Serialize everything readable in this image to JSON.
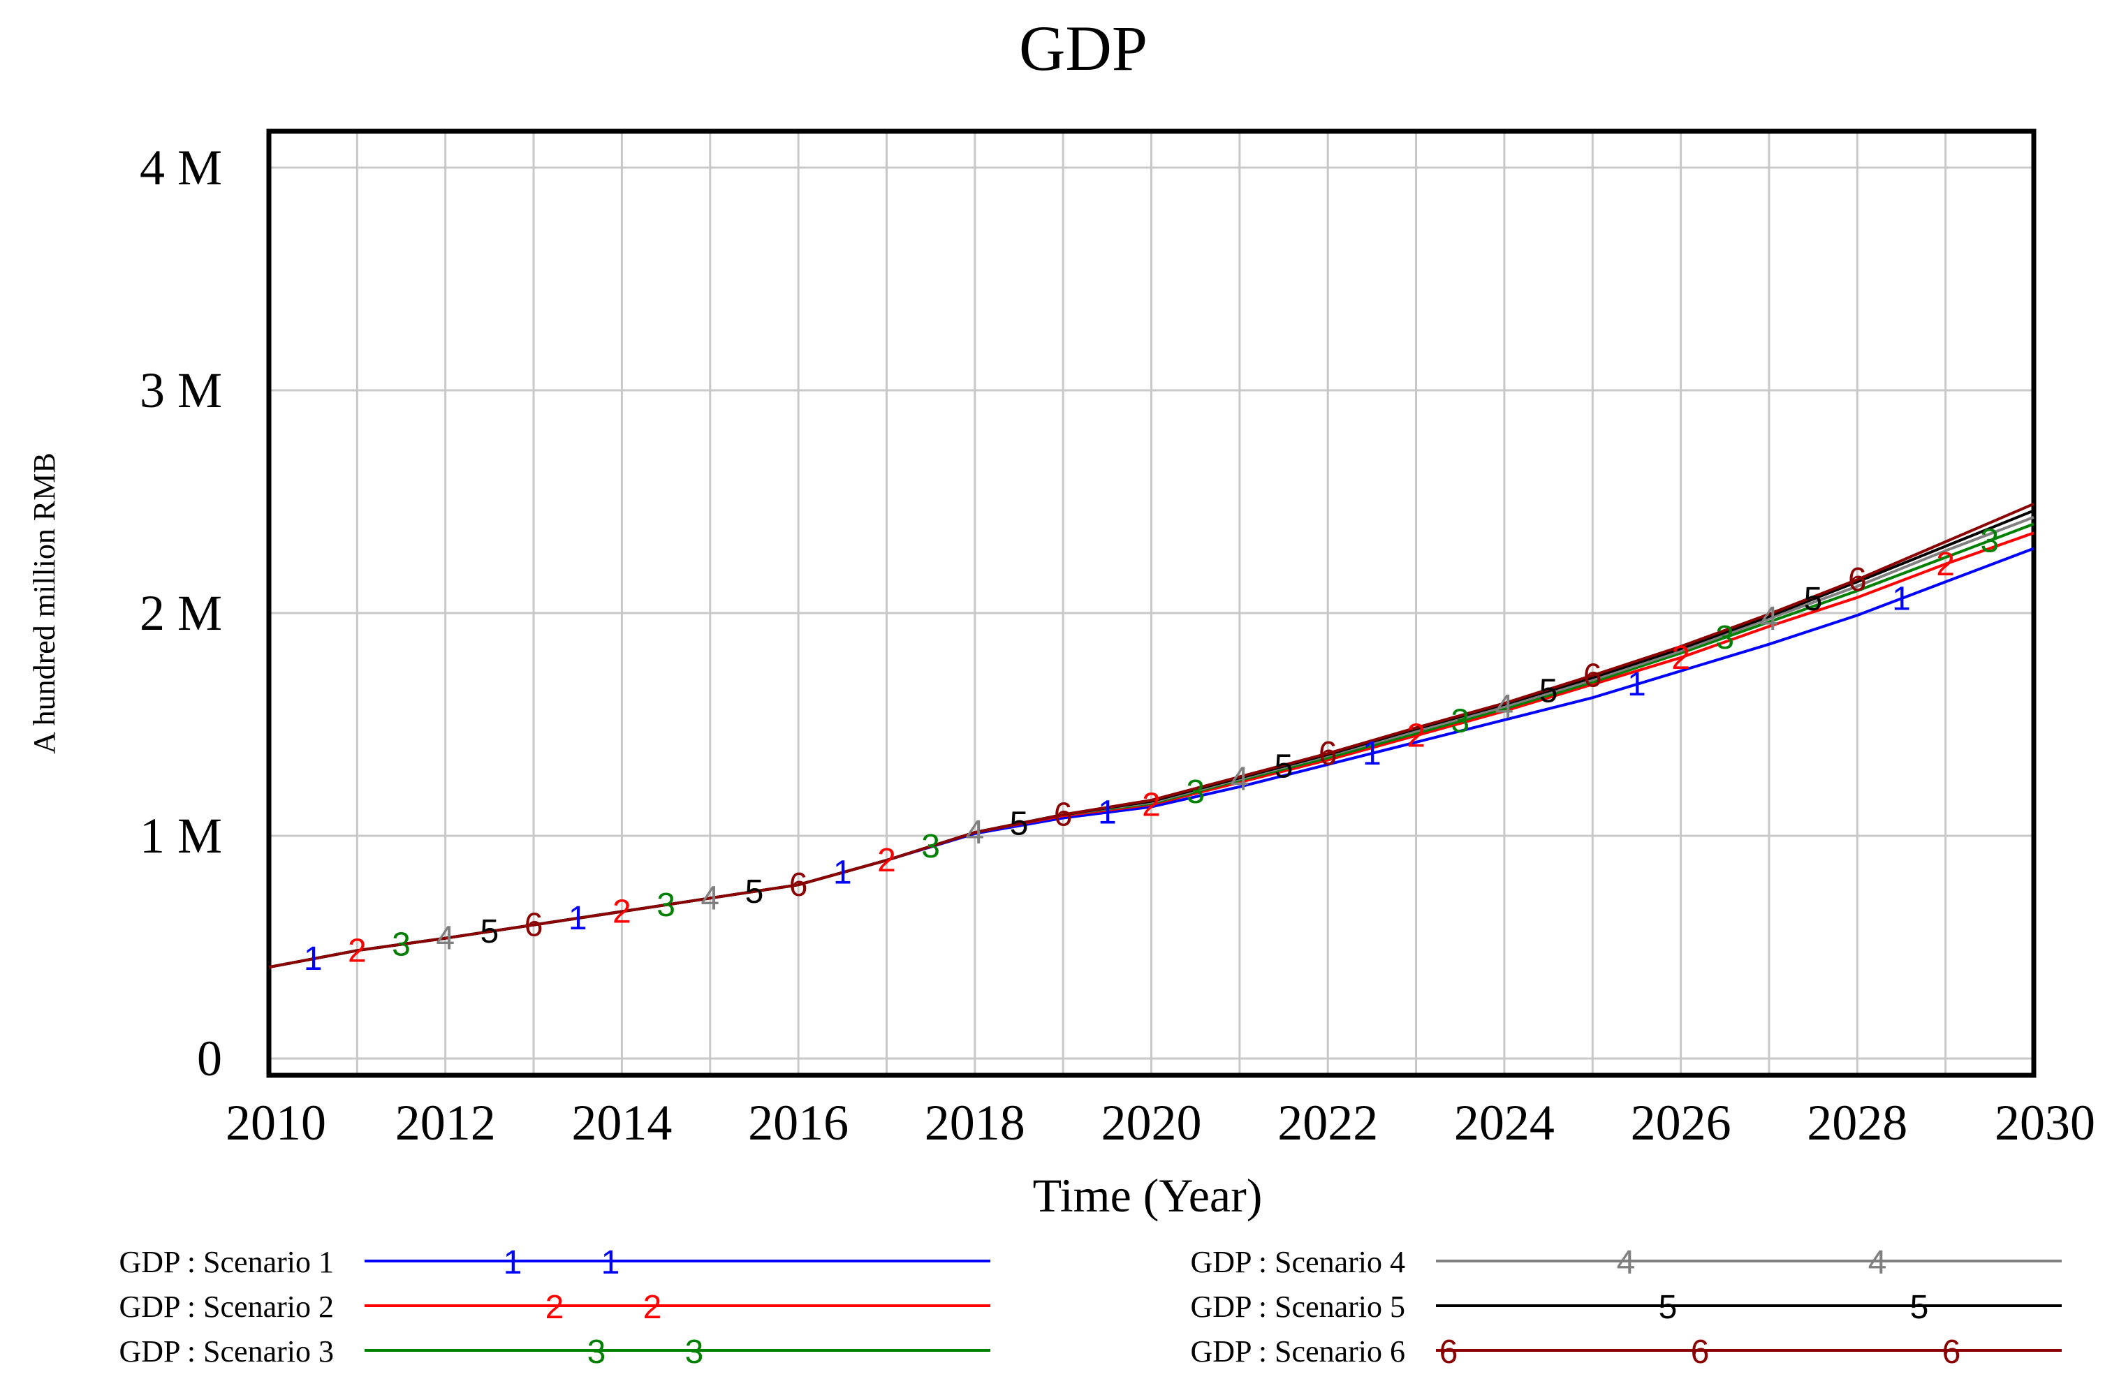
{
  "chart_data": {
    "type": "line",
    "title": "GDP",
    "xlabel": "Time (Year)",
    "ylabel": "A hundred million RMB",
    "xlim": [
      2010,
      2030
    ],
    "ylim": [
      0,
      4000000
    ],
    "x_ticks": [
      "2010",
      "2012",
      "2014",
      "2016",
      "2018",
      "2020",
      "2022",
      "2024",
      "2026",
      "2028",
      "2030"
    ],
    "y_ticks": [
      "0",
      "1 M",
      "2 M",
      "3 M",
      "4 M"
    ],
    "grid": true,
    "legend_position": "bottom",
    "x": [
      2010,
      2011,
      2012,
      2013,
      2014,
      2015,
      2016,
      2017,
      2018,
      2019,
      2020,
      2021,
      2022,
      2023,
      2024,
      2025,
      2026,
      2027,
      2028,
      2029,
      2030
    ],
    "series": [
      {
        "name": "GDP : Scenario 1",
        "marker": "1",
        "color": "#0000ff",
        "values": [
          410000,
          485000,
          540000,
          600000,
          660000,
          720000,
          780000,
          890000,
          1010000,
          1080000,
          1130000,
          1220000,
          1320000,
          1420000,
          1520000,
          1620000,
          1740000,
          1860000,
          1990000,
          2140000,
          2290000
        ]
      },
      {
        "name": "GDP : Scenario 2",
        "marker": "2",
        "color": "#ff0000",
        "values": [
          410000,
          485000,
          540000,
          600000,
          660000,
          720000,
          780000,
          890000,
          1015000,
          1090000,
          1140000,
          1240000,
          1340000,
          1450000,
          1560000,
          1680000,
          1800000,
          1940000,
          2070000,
          2220000,
          2360000
        ]
      },
      {
        "name": "GDP : Scenario 3",
        "marker": "3",
        "color": "#008000",
        "values": [
          410000,
          485000,
          540000,
          600000,
          660000,
          720000,
          780000,
          890000,
          1015000,
          1095000,
          1145000,
          1250000,
          1350000,
          1460000,
          1570000,
          1690000,
          1820000,
          1960000,
          2100000,
          2250000,
          2400000
        ]
      },
      {
        "name": "GDP : Scenario 4",
        "marker": "4",
        "color": "#808080",
        "values": [
          410000,
          485000,
          540000,
          600000,
          660000,
          720000,
          780000,
          890000,
          1015000,
          1095000,
          1150000,
          1255000,
          1360000,
          1470000,
          1580000,
          1700000,
          1830000,
          1975000,
          2120000,
          2280000,
          2430000
        ]
      },
      {
        "name": "GDP : Scenario 5",
        "marker": "5",
        "color": "#000000",
        "values": [
          410000,
          485000,
          540000,
          600000,
          660000,
          720000,
          780000,
          890000,
          1015000,
          1095000,
          1155000,
          1260000,
          1365000,
          1480000,
          1590000,
          1710000,
          1840000,
          1985000,
          2140000,
          2300000,
          2460000
        ]
      },
      {
        "name": "GDP : Scenario 6",
        "marker": "6",
        "color": "#8b0000",
        "values": [
          410000,
          485000,
          540000,
          600000,
          660000,
          720000,
          780000,
          890000,
          1015000,
          1095000,
          1160000,
          1265000,
          1370000,
          1485000,
          1595000,
          1720000,
          1850000,
          1995000,
          2150000,
          2320000,
          2490000
        ]
      }
    ]
  }
}
